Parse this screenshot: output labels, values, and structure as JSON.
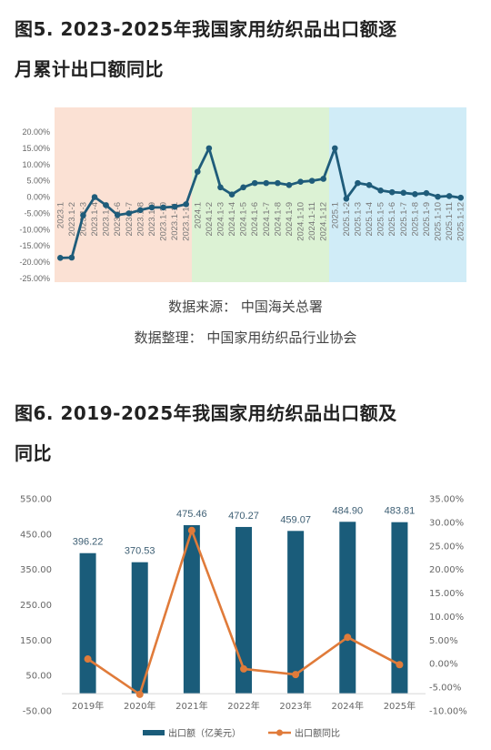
{
  "titles": {
    "fig5_line1": "图5. 2023-2025年我国家用纺织品出口额逐",
    "fig5_line2": "月累计出口额同比",
    "fig6_line1": "图6. 2019-2025年我国家用纺织品出口额及",
    "fig6_line2": "同比"
  },
  "source": {
    "line1": "数据来源： 中国海关总署",
    "line2": "数据整理： 中国家用纺织品行业协会"
  },
  "colors": {
    "line": "#1f5c7a",
    "bg2023": "#fbe1d4",
    "bg2024": "#dcf2d4",
    "bg2025": "#d0ecf7",
    "bar": "#1a5c7a",
    "line2": "#e07b3a"
  },
  "chart_data": [
    {
      "type": "line",
      "y_ticks": [
        "20.00%",
        "15.00%",
        "10.00%",
        "5.00%",
        "0.00%",
        "-5.00%",
        "-10.00%",
        "-15.00%",
        "-20.00%",
        "-25.00%"
      ],
      "ylim": [
        -25,
        22
      ],
      "categories": [
        "2023.1",
        "2023.1-2",
        "2023.1-3",
        "2023.1-4",
        "2023.1-5",
        "2023.1-6",
        "2023.1-7",
        "2023.1-8",
        "2023.1-9",
        "2023.1-10",
        "2023.1-11",
        "2023.1-12",
        "2024.1",
        "2024.1-2",
        "2024.1-3",
        "2024.1-4",
        "2024.1-5",
        "2024.1-6",
        "2024.1-7",
        "2024.1-8",
        "2024.1-9",
        "2024.1-10",
        "2024.1-11",
        "2024.1-12",
        "2025.1",
        "2025.1-2",
        "2025.1-3",
        "2025.1-4",
        "2025.1-5",
        "2025.1-6",
        "2025.1-7",
        "2025.1-8",
        "2025.1-9",
        "2025.1-10",
        "2025.1-11",
        "2025.1-12"
      ],
      "values": [
        -18.7,
        -18.6,
        -5.6,
        0.0,
        -2.5,
        -5.5,
        -5.0,
        -4.0,
        -3.2,
        -3.2,
        -3.0,
        -2.2,
        7.8,
        15.0,
        3.0,
        0.8,
        3.0,
        4.3,
        4.3,
        4.3,
        3.7,
        4.7,
        5.0,
        5.6,
        15.0,
        -0.5,
        4.3,
        3.7,
        2.0,
        1.5,
        1.3,
        0.9,
        1.2,
        0.1,
        0.3,
        -0.2
      ],
      "grid": false
    },
    {
      "type": "bar",
      "categories": [
        "2019年",
        "2020年",
        "2021年",
        "2022年",
        "2023年",
        "2024年",
        "2025年"
      ],
      "series": [
        {
          "name": "出口额（亿美元）",
          "values": [
            396.22,
            370.53,
            475.46,
            470.27,
            459.07,
            484.9,
            483.81
          ],
          "labels": [
            "396.22",
            "370.53",
            "475.46",
            "470.27",
            "459.07",
            "484.90",
            "483.81"
          ]
        },
        {
          "name": "出口额同比",
          "type": "line",
          "axis": "right",
          "values": [
            1.0,
            -6.5,
            28.3,
            -1.1,
            -2.3,
            5.6,
            -0.2
          ]
        }
      ],
      "y_left_ticks": [
        "550.00",
        "450.00",
        "350.00",
        "250.00",
        "150.00",
        "50.00",
        "-50.00"
      ],
      "ylim_left": [
        -50,
        550
      ],
      "y_right_ticks": [
        "35.00%",
        "30.00%",
        "25.00%",
        "20.00%",
        "15.00%",
        "10.00%",
        "5.00%",
        "0.00%",
        "-5.00%",
        "-10.00%"
      ],
      "ylim_right": [
        -10,
        35
      ],
      "legend": "bottom",
      "grid": false
    }
  ]
}
